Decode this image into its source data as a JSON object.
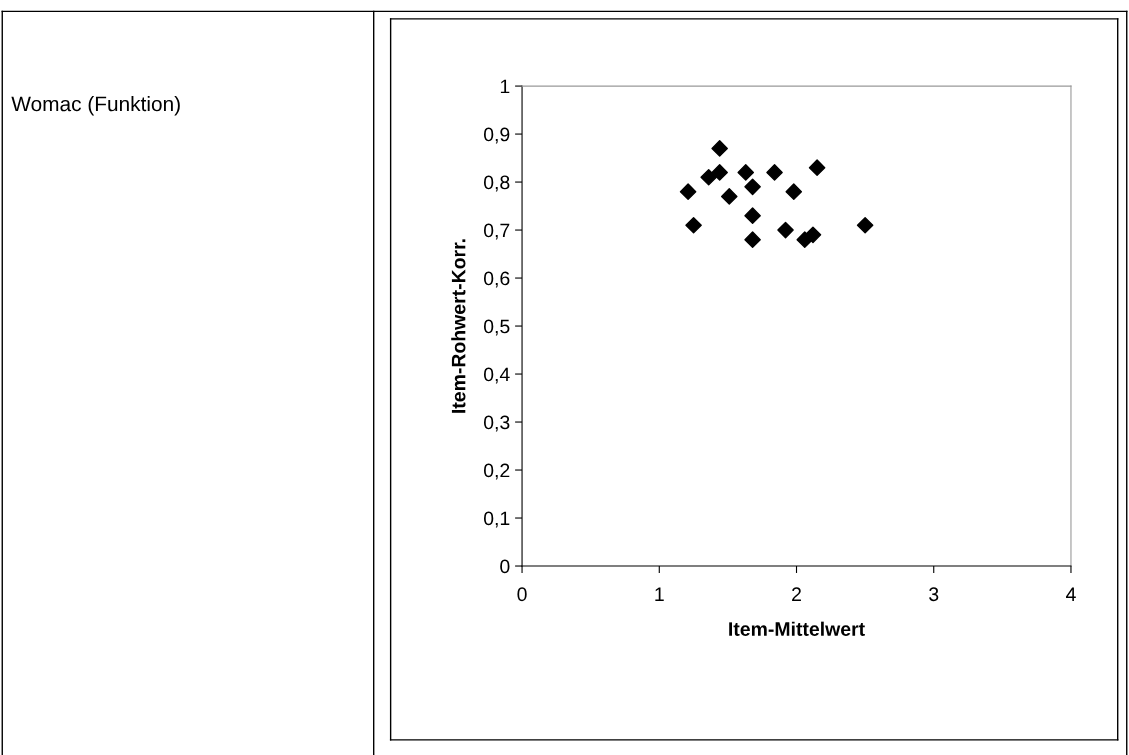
{
  "chart_data": {
    "type": "scatter",
    "xlabel": "Item-Mittelwert",
    "ylabel": "Item-Rohwert-Korr.",
    "annotations": [
      "Womac (Funktion)"
    ],
    "x": [
      1.44,
      1.44,
      1.36,
      1.21,
      1.63,
      1.84,
      2.15,
      1.68,
      1.98,
      1.51,
      1.68,
      1.25,
      1.92,
      1.68,
      2.06,
      2.12,
      2.5
    ],
    "values": [
      0.87,
      0.82,
      0.81,
      0.78,
      0.82,
      0.82,
      0.83,
      0.79,
      0.78,
      0.77,
      0.73,
      0.71,
      0.7,
      0.68,
      0.68,
      0.69,
      0.71
    ],
    "color": "#000000",
    "marker": "diamond",
    "xlim": [
      0,
      4
    ],
    "xticks": [
      0,
      1,
      2,
      3,
      4
    ],
    "ylim": [
      0,
      1
    ],
    "yticks": [
      0,
      {
        "value": 0.1,
        "label": "0,1"
      },
      {
        "value": 0.2,
        "label": "0,2"
      },
      {
        "value": 0.3,
        "label": "0,3"
      },
      {
        "value": 0.4,
        "label": "0,4"
      },
      {
        "value": 0.5,
        "label": "0,5"
      },
      {
        "value": 0.6,
        "label": "0,6"
      },
      {
        "value": 0.7,
        "label": "0,7"
      },
      {
        "value": 0.8,
        "label": "0,8"
      },
      {
        "value": 0.9,
        "label": "0,9"
      },
      1
    ],
    "grid": false
  }
}
